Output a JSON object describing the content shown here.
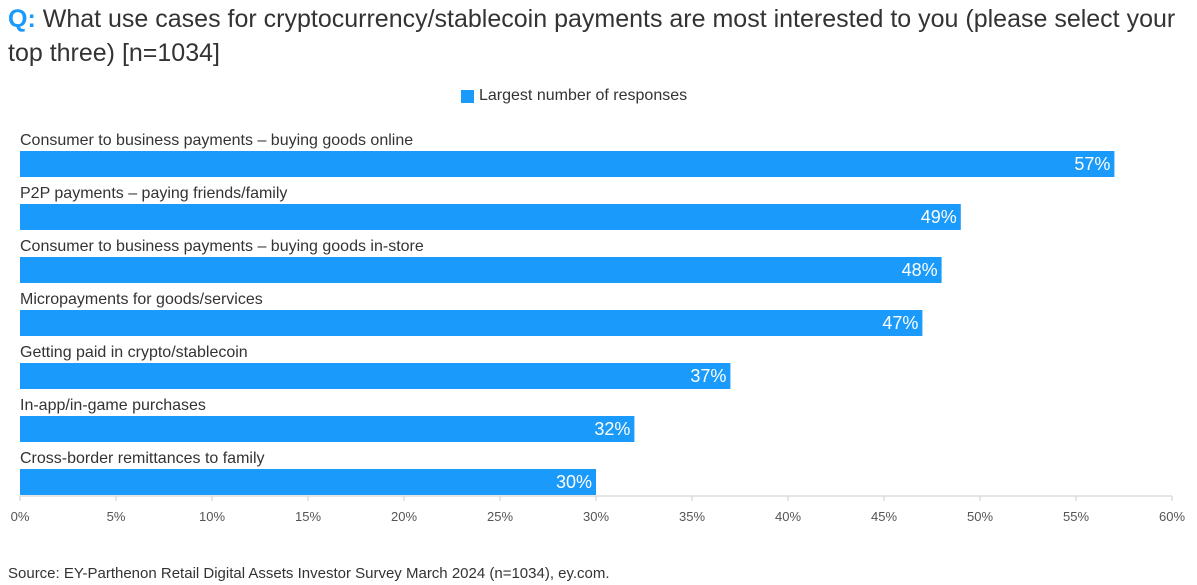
{
  "header": {
    "q_prefix": "Q:",
    "question": "What use cases for cryptocurrency/stablecoin payments are most interested to you (please select your top three) [n=1034]"
  },
  "colors": {
    "bar": "#1a9afa",
    "accent": "#1a9afa",
    "axis": "#cccccc"
  },
  "chart_data": {
    "type": "bar",
    "orientation": "horizontal",
    "categories": [
      "Consumer to business payments – buying goods online",
      "P2P payments – paying friends/family",
      "Consumer to business payments – buying goods in-store",
      "Micropayments for goods/services",
      "Getting paid in crypto/stablecoin",
      "In-app/in-game purchases",
      "Cross-border remittances to family"
    ],
    "values": [
      57,
      49,
      48,
      47,
      37,
      32,
      30
    ],
    "value_labels": [
      "57%",
      "49%",
      "48%",
      "47%",
      "37%",
      "32%",
      "30%"
    ],
    "legend": [
      "Largest number of responses"
    ],
    "xlim": [
      0,
      60
    ],
    "xticks": [
      "0%",
      "5%",
      "10%",
      "15%",
      "20%",
      "25%",
      "30%",
      "35%",
      "40%",
      "45%",
      "50%",
      "55%",
      "60%"
    ],
    "xlabel": "",
    "ylabel": ""
  },
  "footer": {
    "source": "Source: EY-Parthenon Retail Digital Assets Investor Survey March 2024 (n=1034), ey.com."
  }
}
